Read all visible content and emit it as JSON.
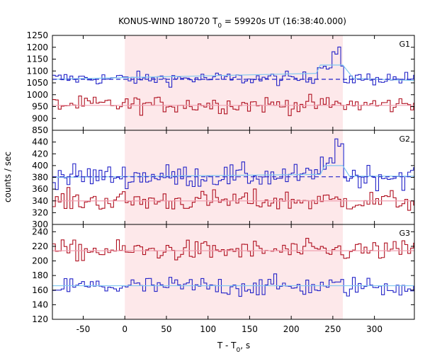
{
  "chart_data": {
    "type": "line",
    "title": "KONUS-WIND 180720 T",
    "title_sub": "0",
    "title_rest": " = 59920s UT (16:38:40.000)",
    "xlabel": "T - T",
    "xlabel_sub": "0",
    "xlabel_rest": ", s",
    "ylabel": "counts / sec",
    "xlim": [
      -87,
      348
    ],
    "xticks": [
      -50,
      0,
      50,
      100,
      150,
      200,
      250,
      300
    ],
    "highlight_interval": [
      0,
      262
    ],
    "highlight_color": "#fde8ea",
    "panels": [
      {
        "label": "G1",
        "ylim": [
          850,
          1250
        ],
        "yticks": [
          850,
          900,
          950,
          1000,
          1050,
          1100,
          1150,
          1200,
          1250
        ],
        "series": [
          {
            "color": "#2323c8",
            "base": 1068,
            "noise": 14,
            "bump": [
              [
                230,
                262,
                1125
              ],
              [
                248,
                256,
                1180
              ]
            ]
          },
          {
            "color": "#b01020",
            "base": 958,
            "noise": 18,
            "bump": []
          }
        ],
        "fits": [
          {
            "color": "#7fc8f0",
            "points": [
              [
                -87,
                1065
              ],
              [
                230,
                1090
              ],
              [
                235,
                1125
              ],
              [
                262,
                1125
              ],
              [
                275,
                1068
              ],
              [
                348,
                1060
              ]
            ]
          },
          {
            "color": "#2323c8",
            "dashed": true,
            "points": [
              [
                -87,
                1065
              ],
              [
                348,
                1065
              ]
            ]
          },
          {
            "color": "#f0a0b0",
            "points": [
              [
                -87,
                955
              ],
              [
                348,
                955
              ]
            ]
          }
        ]
      },
      {
        "label": "G2",
        "ylim": [
          300,
          460
        ],
        "yticks": [
          300,
          320,
          340,
          360,
          380,
          400,
          420,
          440
        ],
        "series": [
          {
            "color": "#2323c8",
            "base": 382,
            "noise": 10,
            "bump": [
              [
                235,
                262,
                405
              ],
              [
                252,
                262,
                435
              ]
            ]
          },
          {
            "color": "#b01020",
            "base": 340,
            "noise": 9,
            "bump": []
          }
        ],
        "fits": [
          {
            "color": "#7fc8f0",
            "points": [
              [
                -87,
                380
              ],
              [
                235,
                385
              ],
              [
                240,
                400
              ],
              [
                262,
                400
              ],
              [
                270,
                382
              ],
              [
                348,
                382
              ]
            ]
          },
          {
            "color": "#2323c8",
            "dashed": true,
            "points": [
              [
                -87,
                381
              ],
              [
                348,
                381
              ]
            ]
          },
          {
            "color": "#f0a0b0",
            "points": [
              [
                -87,
                340
              ],
              [
                348,
                340
              ]
            ]
          }
        ]
      },
      {
        "label": "G3",
        "ylim": [
          120,
          250
        ],
        "yticks": [
          120,
          140,
          160,
          180,
          200,
          220,
          240
        ],
        "series": [
          {
            "color": "#b01020",
            "base": 214,
            "noise": 7,
            "bump": []
          },
          {
            "color": "#2323c8",
            "base": 165,
            "noise": 7,
            "bump": []
          }
        ],
        "fits": [
          {
            "color": "#f0a0b0",
            "points": [
              [
                -87,
                214
              ],
              [
                348,
                214
              ]
            ]
          },
          {
            "color": "#7fc8f0",
            "points": [
              [
                -87,
                166
              ],
              [
                348,
                166
              ]
            ]
          }
        ]
      }
    ]
  }
}
